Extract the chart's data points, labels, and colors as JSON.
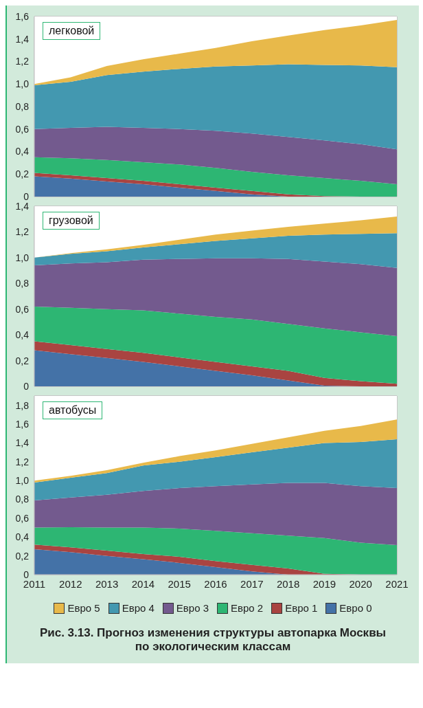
{
  "chart_data": [
    {
      "type": "area",
      "title": "легковой",
      "stacked": true,
      "grid": true,
      "tick_labels": "y",
      "x": [
        2011,
        2012,
        2013,
        2014,
        2015,
        2016,
        2017,
        2018,
        2019,
        2020,
        2021
      ],
      "xlim": [
        2011,
        2021
      ],
      "xticks": [
        2011,
        2012,
        2013,
        2014,
        2015,
        2016,
        2017,
        2018,
        2019,
        2020,
        2021
      ],
      "ylim": [
        0,
        1.6
      ],
      "yticks": [
        {
          "value": 0,
          "label": "0"
        },
        {
          "value": 0.2,
          "label": "0,2"
        },
        {
          "value": 0.4,
          "label": "0,4"
        },
        {
          "value": 0.6,
          "label": "0,6"
        },
        {
          "value": 0.8,
          "label": "0,8"
        },
        {
          "value": 1.0,
          "label": "1,0"
        },
        {
          "value": 1.2,
          "label": "1,2"
        },
        {
          "value": 1.4,
          "label": "1,4"
        },
        {
          "value": 1.6,
          "label": "1,6"
        }
      ],
      "series": [
        {
          "color": "#4472a7",
          "values": [
            0.18,
            0.16,
            0.135,
            0.11,
            0.08,
            0.05,
            0.02,
            0,
            0,
            0,
            0
          ]
        },
        {
          "color": "#a94441",
          "values": [
            0.03,
            0.03,
            0.03,
            0.03,
            0.03,
            0.03,
            0.03,
            0.02,
            0.005,
            0,
            0
          ]
        },
        {
          "color": "#2db673",
          "values": [
            0.14,
            0.15,
            0.16,
            0.165,
            0.175,
            0.175,
            0.17,
            0.17,
            0.16,
            0.14,
            0.11
          ]
        },
        {
          "color": "#735a8e",
          "values": [
            0.25,
            0.27,
            0.295,
            0.305,
            0.315,
            0.33,
            0.34,
            0.34,
            0.335,
            0.325,
            0.31
          ]
        },
        {
          "color": "#4398b0",
          "values": [
            0.39,
            0.41,
            0.46,
            0.5,
            0.535,
            0.57,
            0.605,
            0.645,
            0.67,
            0.7,
            0.73
          ]
        },
        {
          "color": "#e8b94a",
          "values": [
            0.01,
            0.04,
            0.08,
            0.11,
            0.135,
            0.165,
            0.215,
            0.255,
            0.31,
            0.355,
            0.42
          ]
        }
      ]
    },
    {
      "type": "area",
      "title": "грузовой",
      "stacked": true,
      "grid": true,
      "tick_labels": "y",
      "x": [
        2011,
        2012,
        2013,
        2014,
        2015,
        2016,
        2017,
        2018,
        2019,
        2020,
        2021
      ],
      "xlim": [
        2011,
        2021
      ],
      "xticks": [
        2011,
        2012,
        2013,
        2014,
        2015,
        2016,
        2017,
        2018,
        2019,
        2020,
        2021
      ],
      "ylim": [
        0,
        1.4
      ],
      "yticks": [
        {
          "value": 0,
          "label": "0"
        },
        {
          "value": 0.2,
          "label": "0,2"
        },
        {
          "value": 0.4,
          "label": "0,4"
        },
        {
          "value": 0.6,
          "label": "0,6"
        },
        {
          "value": 0.8,
          "label": "0,8"
        },
        {
          "value": 1.0,
          "label": "1,0"
        },
        {
          "value": 1.2,
          "label": "1,2"
        },
        {
          "value": 1.4,
          "label": "1,4"
        }
      ],
      "series": [
        {
          "color": "#4472a7",
          "values": [
            0.28,
            0.25,
            0.22,
            0.19,
            0.155,
            0.12,
            0.085,
            0.045,
            0.005,
            0,
            0
          ]
        },
        {
          "color": "#a94441",
          "values": [
            0.07,
            0.07,
            0.07,
            0.07,
            0.07,
            0.07,
            0.07,
            0.075,
            0.06,
            0.04,
            0.02
          ]
        },
        {
          "color": "#2db673",
          "values": [
            0.27,
            0.29,
            0.31,
            0.33,
            0.34,
            0.35,
            0.365,
            0.365,
            0.385,
            0.38,
            0.37
          ]
        },
        {
          "color": "#735a8e",
          "values": [
            0.32,
            0.345,
            0.365,
            0.395,
            0.425,
            0.455,
            0.475,
            0.505,
            0.52,
            0.53,
            0.53
          ]
        },
        {
          "color": "#4398b0",
          "values": [
            0.06,
            0.075,
            0.085,
            0.095,
            0.115,
            0.135,
            0.155,
            0.18,
            0.21,
            0.235,
            0.27
          ]
        },
        {
          "color": "#e8b94a",
          "values": [
            0,
            0.005,
            0.015,
            0.02,
            0.035,
            0.05,
            0.06,
            0.07,
            0.085,
            0.105,
            0.13
          ]
        }
      ]
    },
    {
      "type": "area",
      "title": "автобусы",
      "stacked": true,
      "grid": true,
      "legend": "bottom",
      "x": [
        2011,
        2012,
        2013,
        2014,
        2015,
        2016,
        2017,
        2018,
        2019,
        2020,
        2021
      ],
      "xlim": [
        2011,
        2021
      ],
      "xticks": [
        2011,
        2012,
        2013,
        2014,
        2015,
        2016,
        2017,
        2018,
        2019,
        2020,
        2021
      ],
      "ylim": [
        0,
        1.9
      ],
      "yticks": [
        {
          "value": 0,
          "label": "0"
        },
        {
          "value": 0.2,
          "label": "0,2"
        },
        {
          "value": 0.4,
          "label": "0,4"
        },
        {
          "value": 0.6,
          "label": "0,6"
        },
        {
          "value": 0.8,
          "label": "0,8"
        },
        {
          "value": 1.0,
          "label": "1,0"
        },
        {
          "value": 1.2,
          "label": "1,2"
        },
        {
          "value": 1.4,
          "label": "1,4"
        },
        {
          "value": 1.6,
          "label": "1,6"
        },
        {
          "value": 1.8,
          "label": "1,8"
        }
      ],
      "annotations": [
        "Рис. 3.13. Прогноз изменения структуры автопарка Москвы по экологическим классам"
      ],
      "series": [
        {
          "name": "Евро 0",
          "color": "#4472a7",
          "values": [
            0.27,
            0.24,
            0.2,
            0.165,
            0.125,
            0.08,
            0.035,
            0,
            0,
            0,
            0
          ]
        },
        {
          "name": "Евро 1",
          "color": "#a94441",
          "values": [
            0.05,
            0.05,
            0.055,
            0.055,
            0.065,
            0.065,
            0.07,
            0.065,
            0.01,
            0,
            0
          ]
        },
        {
          "name": "Евро 2",
          "color": "#2db673",
          "values": [
            0.18,
            0.215,
            0.245,
            0.28,
            0.3,
            0.32,
            0.335,
            0.35,
            0.38,
            0.34,
            0.315
          ]
        },
        {
          "name": "Евро 3",
          "color": "#735a8e",
          "values": [
            0.29,
            0.315,
            0.35,
            0.39,
            0.43,
            0.475,
            0.52,
            0.56,
            0.585,
            0.6,
            0.605
          ]
        },
        {
          "name": "Евро 4",
          "color": "#4398b0",
          "values": [
            0.19,
            0.21,
            0.23,
            0.27,
            0.28,
            0.31,
            0.34,
            0.375,
            0.425,
            0.47,
            0.52
          ]
        },
        {
          "name": "Евро 5",
          "color": "#e8b94a",
          "values": [
            0.02,
            0.02,
            0.03,
            0.03,
            0.06,
            0.07,
            0.09,
            0.11,
            0.13,
            0.17,
            0.21
          ]
        }
      ]
    }
  ]
}
